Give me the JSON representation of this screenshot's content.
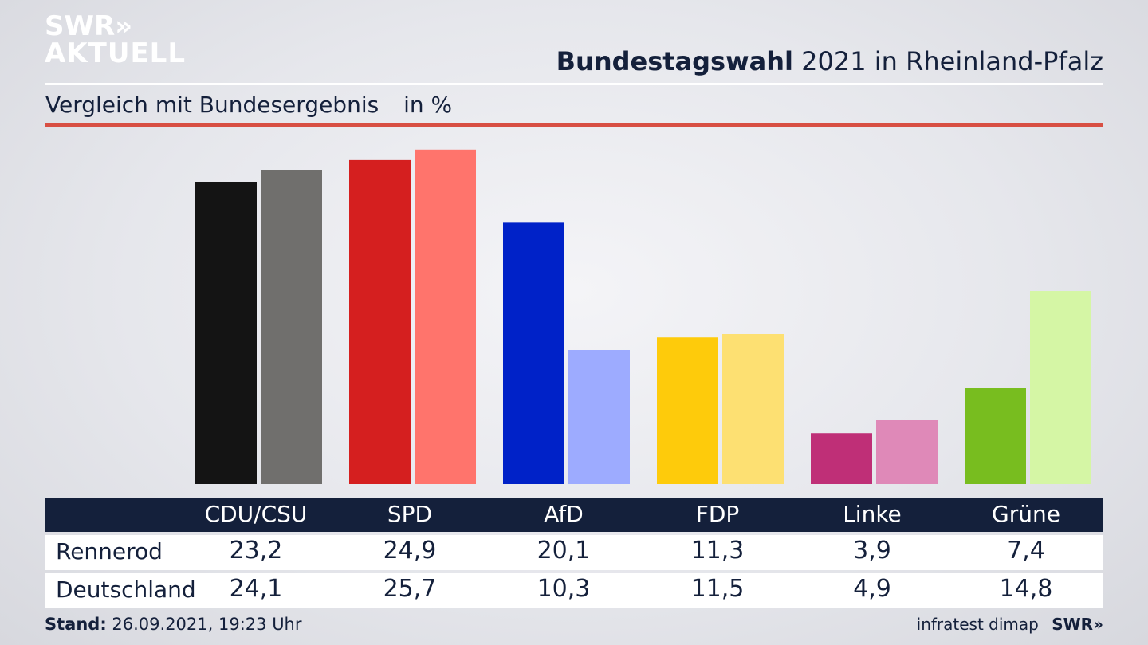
{
  "header": {
    "logo_line1": "SWR»",
    "logo_line2": "AKTUELL",
    "title_bold": "Bundestagswahl",
    "title_rest": "2021 in Rheinland-Pfalz",
    "subtitle": "Vergleich mit Bundesergebnis",
    "unit": "in %"
  },
  "chart_data": {
    "type": "bar",
    "title": "Bundestagswahl 2021 in Rheinland-Pfalz",
    "subtitle": "Vergleich mit Bundesergebnis in %",
    "categories": [
      "CDU/CSU",
      "SPD",
      "AfD",
      "FDP",
      "Linke",
      "Grüne"
    ],
    "series": [
      {
        "name": "Rennerod",
        "values": [
          23.2,
          24.9,
          20.1,
          11.3,
          3.9,
          7.4
        ]
      },
      {
        "name": "Deutschland",
        "values": [
          24.1,
          25.7,
          10.3,
          11.5,
          4.9,
          14.8
        ]
      }
    ],
    "colors": {
      "Rennerod": [
        "#141414",
        "#d51f1f",
        "#0022c8",
        "#fecb0b",
        "#bf2f77",
        "#78bd1f"
      ],
      "Deutschland": [
        "#706f6d",
        "#ff746c",
        "#9dabff",
        "#fde072",
        "#df89b8",
        "#d5f6a5"
      ]
    },
    "ylim": [
      0,
      26
    ],
    "grid": false,
    "legend": "table-below"
  },
  "table": {
    "headers": [
      "CDU/CSU",
      "SPD",
      "AfD",
      "FDP",
      "Linke",
      "Grüne"
    ],
    "rows": [
      {
        "label": "Rennerod",
        "values": [
          "23,2",
          "24,9",
          "20,1",
          "11,3",
          "3,9",
          "7,4"
        ]
      },
      {
        "label": "Deutschland",
        "values": [
          "24,1",
          "25,7",
          "10,3",
          "11,5",
          "4,9",
          "14,8"
        ]
      }
    ]
  },
  "footer": {
    "stand_label": "Stand:",
    "stand_value": "26.09.2021, 19:23 Uhr",
    "source": "infratest dimap",
    "brand": "SWR»"
  }
}
